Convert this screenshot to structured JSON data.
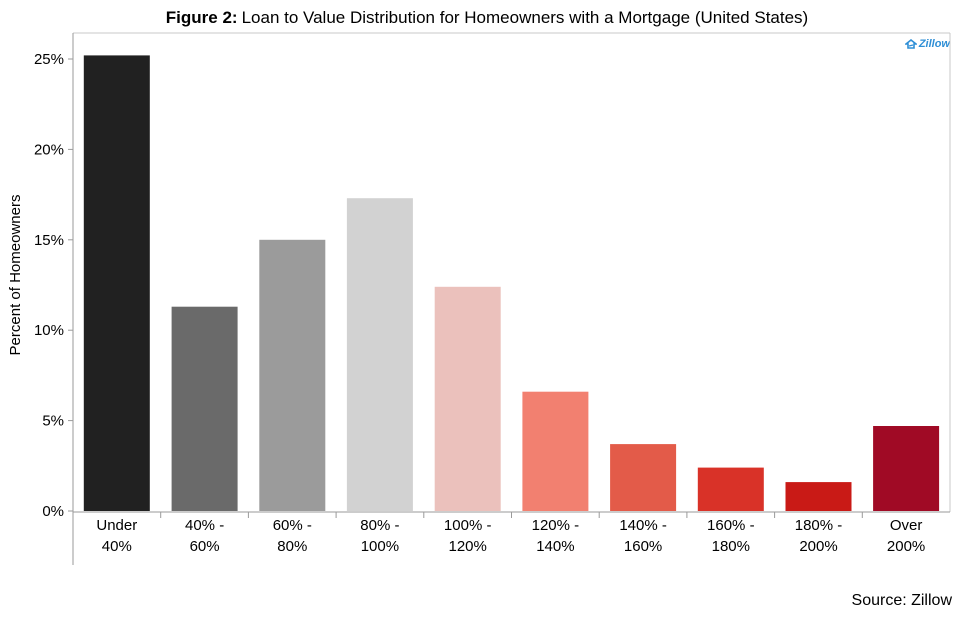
{
  "header": {
    "title_prefix": "Figure 2:",
    "title_text": "Loan to Value Distribution for Homeowners with a Mortgage (United States)"
  },
  "logo": {
    "text": "Zillow",
    "icon": "zillow-logo-icon",
    "color": "#2f8fd6"
  },
  "footer": {
    "source": "Source: Zillow"
  },
  "chart_data": {
    "type": "bar",
    "title": "Loan to Value Distribution for Homeowners with a Mortgage (United States)",
    "xlabel": "",
    "ylabel": "Percent of Homeowners",
    "ylim": [
      0,
      26
    ],
    "yticks": [
      0,
      5,
      10,
      15,
      20,
      25
    ],
    "ytick_labels": [
      "0%",
      "5%",
      "10%",
      "15%",
      "20%",
      "25%"
    ],
    "grid": false,
    "categories": [
      [
        "Under",
        "40%"
      ],
      [
        "40% -",
        "60%"
      ],
      [
        "60% -",
        "80%"
      ],
      [
        "80% -",
        "100%"
      ],
      [
        "100% -",
        "120%"
      ],
      [
        "120% -",
        "140%"
      ],
      [
        "140% -",
        "160%"
      ],
      [
        "160% -",
        "180%"
      ],
      [
        "180% -",
        "200%"
      ],
      [
        "Over",
        "200%"
      ]
    ],
    "values": [
      25.2,
      11.3,
      15.0,
      17.3,
      12.4,
      6.6,
      3.7,
      2.4,
      1.6,
      4.7
    ],
    "colors": [
      "#212121",
      "#6a6a6a",
      "#9b9b9b",
      "#d2d2d2",
      "#ebc1bc",
      "#f28070",
      "#e35b49",
      "#d93228",
      "#c91a16",
      "#a00a25"
    ]
  }
}
